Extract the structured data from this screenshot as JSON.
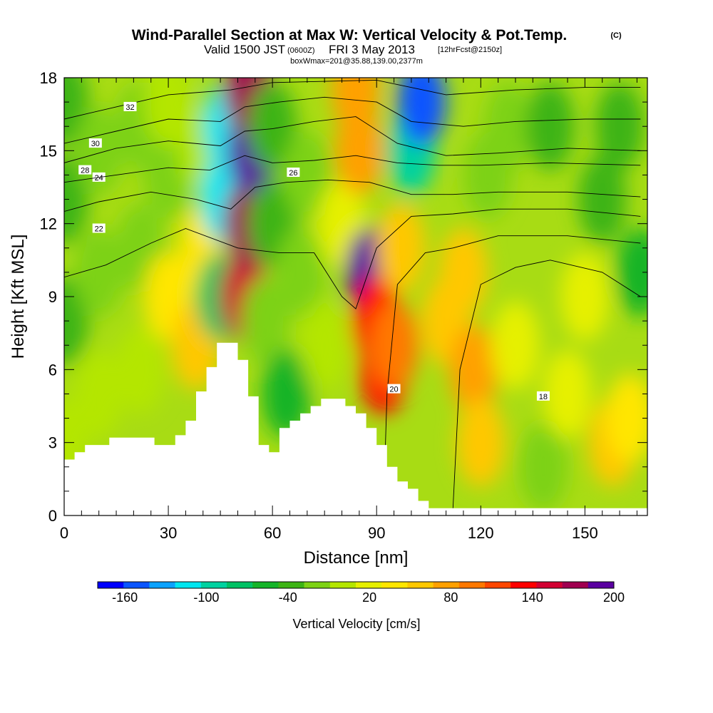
{
  "header": {
    "title": "Wind-Parallel Section at Max W: Vertical Velocity & Pot.Temp.",
    "copyright": "(C)",
    "valid_prefix": "Valid 1500 JST",
    "valid_utc": "(0600Z)",
    "valid_date": "FRI 3 May 2013",
    "forecast_note": "[12hrFcst@2150z]",
    "box_info": "boxWmax=201@35.88,139.00,2377m"
  },
  "chart_data": {
    "type": "heatmap",
    "xlabel": "Distance [nm]",
    "ylabel": "Height [Kft MSL]",
    "xlim": [
      0,
      168
    ],
    "ylim": [
      0,
      18
    ],
    "x_ticks": [
      "0",
      "30",
      "60",
      "90",
      "120",
      "150"
    ],
    "y_ticks": [
      "0",
      "3",
      "6",
      "9",
      "12",
      "15",
      "18"
    ],
    "colorbar": {
      "title": "Vertical Velocity [cm/s]",
      "tick_labels": [
        "-160",
        "-100",
        "-40",
        "20",
        "80",
        "140",
        "200"
      ],
      "levels": [
        -180,
        -160,
        -140,
        -120,
        -100,
        -80,
        -60,
        -40,
        -20,
        0,
        20,
        40,
        60,
        80,
        100,
        120,
        140,
        160,
        180,
        200
      ],
      "colors": [
        "#0000ff",
        "#0a55ff",
        "#0aa2ff",
        "#00e6f0",
        "#00d2a0",
        "#00c264",
        "#14b428",
        "#3cb414",
        "#7dd214",
        "#b4e600",
        "#e6f000",
        "#ffe600",
        "#ffc800",
        "#ffa000",
        "#ff7800",
        "#ff4600",
        "#ff0000",
        "#d20032",
        "#a00050",
        "#5a00a0"
      ]
    },
    "terrain_kft": [
      [
        0,
        2.3
      ],
      [
        3,
        2.3
      ],
      [
        3,
        2.6
      ],
      [
        6,
        2.6
      ],
      [
        6,
        2.9
      ],
      [
        13,
        2.9
      ],
      [
        13,
        3.2
      ],
      [
        26,
        3.2
      ],
      [
        26,
        2.9
      ],
      [
        32,
        2.9
      ],
      [
        32,
        3.3
      ],
      [
        35,
        3.3
      ],
      [
        35,
        3.9
      ],
      [
        38,
        3.9
      ],
      [
        38,
        5.1
      ],
      [
        41,
        5.1
      ],
      [
        41,
        6.1
      ],
      [
        44,
        6.1
      ],
      [
        44,
        7.1
      ],
      [
        50,
        7.1
      ],
      [
        50,
        6.4
      ],
      [
        53,
        6.4
      ],
      [
        53,
        4.9
      ],
      [
        56,
        4.9
      ],
      [
        56,
        2.9
      ],
      [
        59,
        2.9
      ],
      [
        59,
        2.6
      ],
      [
        62,
        2.6
      ],
      [
        62,
        3.6
      ],
      [
        65,
        3.6
      ],
      [
        65,
        3.9
      ],
      [
        68,
        3.9
      ],
      [
        68,
        4.2
      ],
      [
        71,
        4.2
      ],
      [
        71,
        4.5
      ],
      [
        74,
        4.5
      ],
      [
        74,
        4.8
      ],
      [
        81,
        4.8
      ],
      [
        81,
        4.5
      ],
      [
        84,
        4.5
      ],
      [
        84,
        4.2
      ],
      [
        87,
        4.2
      ],
      [
        87,
        3.6
      ],
      [
        90,
        3.6
      ],
      [
        90,
        2.9
      ],
      [
        93,
        2.9
      ],
      [
        93,
        2.0
      ],
      [
        96,
        2.0
      ],
      [
        96,
        1.4
      ],
      [
        99,
        1.4
      ],
      [
        99,
        1.1
      ],
      [
        102,
        1.1
      ],
      [
        102,
        0.6
      ],
      [
        105,
        0.6
      ],
      [
        105,
        0.3
      ],
      [
        168,
        0.3
      ]
    ],
    "w_field_cm_s": [
      [
        0,
        3,
        10
      ],
      [
        0,
        8,
        -30
      ],
      [
        0,
        13,
        -25
      ],
      [
        0,
        17,
        -35
      ],
      [
        10,
        5,
        5
      ],
      [
        10,
        10,
        -20
      ],
      [
        10,
        15,
        -10
      ],
      [
        22,
        6,
        15
      ],
      [
        22,
        11,
        -10
      ],
      [
        22,
        16,
        -20
      ],
      [
        30,
        9,
        40
      ],
      [
        30,
        14,
        -5
      ],
      [
        30,
        17,
        10
      ],
      [
        38,
        7,
        60
      ],
      [
        40,
        11,
        50
      ],
      [
        40,
        15,
        0
      ],
      [
        45,
        9,
        -80
      ],
      [
        46,
        13,
        -110
      ],
      [
        47,
        16,
        -120
      ],
      [
        52,
        9,
        170
      ],
      [
        53,
        12,
        190
      ],
      [
        54,
        15,
        200
      ],
      [
        53,
        17.5,
        180
      ],
      [
        58,
        8,
        -20
      ],
      [
        60,
        12,
        -40
      ],
      [
        60,
        16,
        -30
      ],
      [
        64,
        5,
        -60
      ],
      [
        68,
        10,
        -10
      ],
      [
        70,
        14,
        -20
      ],
      [
        75,
        7,
        5
      ],
      [
        80,
        12,
        20
      ],
      [
        85,
        15,
        80
      ],
      [
        84,
        17.5,
        90
      ],
      [
        88,
        10,
        200
      ],
      [
        90,
        8,
        150
      ],
      [
        92,
        6,
        140
      ],
      [
        95,
        7,
        100
      ],
      [
        97,
        11,
        60
      ],
      [
        100,
        15,
        -100
      ],
      [
        103,
        17,
        -150
      ],
      [
        110,
        8,
        60
      ],
      [
        115,
        10,
        70
      ],
      [
        118,
        6,
        90
      ],
      [
        120,
        3,
        70
      ],
      [
        122,
        14,
        -10
      ],
      [
        128,
        16,
        -20
      ],
      [
        140,
        16,
        -40
      ],
      [
        130,
        7,
        30
      ],
      [
        138,
        2,
        -20
      ],
      [
        145,
        5,
        30
      ],
      [
        150,
        9,
        20
      ],
      [
        155,
        13,
        -30
      ],
      [
        160,
        16,
        -40
      ],
      [
        158,
        3,
        60
      ],
      [
        163,
        4,
        40
      ],
      [
        166,
        10,
        -50
      ]
    ],
    "theta_contours": [
      {
        "label": "18",
        "label_at": [
          138,
          4.9
        ],
        "points": [
          [
            112,
            0.3
          ],
          [
            114,
            6
          ],
          [
            120,
            9.5
          ],
          [
            130,
            10.2
          ],
          [
            140,
            10.5
          ],
          [
            155,
            10
          ],
          [
            166,
            9
          ]
        ]
      },
      {
        "label": "20",
        "label_at": [
          95,
          5.2
        ],
        "points": [
          [
            92,
            0.5
          ],
          [
            93,
            5
          ],
          [
            96,
            9.5
          ],
          [
            104,
            10.8
          ],
          [
            112,
            11
          ],
          [
            125,
            11.5
          ],
          [
            145,
            11.5
          ],
          [
            166,
            11.2
          ]
        ]
      },
      {
        "label": "22",
        "label_at": [
          10,
          11.8
        ],
        "points": [
          [
            0,
            9.8
          ],
          [
            12,
            10.3
          ],
          [
            25,
            11.2
          ],
          [
            35,
            11.8
          ],
          [
            50,
            11
          ],
          [
            62,
            10.8
          ],
          [
            72,
            10.8
          ],
          [
            80,
            9
          ],
          [
            84,
            8.5
          ],
          [
            90,
            11
          ],
          [
            100,
            12.3
          ],
          [
            112,
            12.4
          ],
          [
            125,
            12.6
          ],
          [
            145,
            12.6
          ],
          [
            166,
            12.3
          ]
        ]
      },
      {
        "label": "24",
        "label_at": [
          10,
          13.9
        ],
        "points": [
          [
            0,
            12.5
          ],
          [
            10,
            12.9
          ],
          [
            25,
            13.3
          ],
          [
            38,
            13
          ],
          [
            48,
            12.6
          ],
          [
            55,
            13.5
          ],
          [
            64,
            13.7
          ],
          [
            76,
            13.8
          ],
          [
            88,
            13.7
          ],
          [
            100,
            13.2
          ],
          [
            112,
            13.2
          ],
          [
            125,
            13.3
          ],
          [
            145,
            13.3
          ],
          [
            166,
            13.1
          ]
        ]
      },
      {
        "label": "26",
        "label_at": [
          66,
          14.1
        ],
        "points": [
          [
            0,
            13.7
          ],
          [
            15,
            14
          ],
          [
            30,
            14.3
          ],
          [
            42,
            14.2
          ],
          [
            52,
            14.8
          ],
          [
            60,
            14.5
          ],
          [
            72,
            14.6
          ],
          [
            84,
            14.8
          ],
          [
            96,
            14.5
          ],
          [
            108,
            14.4
          ],
          [
            120,
            14.4
          ],
          [
            140,
            14.5
          ],
          [
            166,
            14.4
          ]
        ]
      },
      {
        "label": "28",
        "label_at": [
          6,
          14.2
        ],
        "points": [
          [
            0,
            14.5
          ],
          [
            15,
            15.1
          ],
          [
            30,
            15.4
          ],
          [
            45,
            15.2
          ],
          [
            52,
            15.8
          ],
          [
            60,
            15.9
          ],
          [
            72,
            16.2
          ],
          [
            84,
            16.4
          ],
          [
            96,
            15.3
          ],
          [
            110,
            14.8
          ],
          [
            125,
            14.9
          ],
          [
            145,
            15.1
          ],
          [
            166,
            15
          ]
        ]
      },
      {
        "label": "30",
        "label_at": [
          9,
          15.3
        ],
        "points": [
          [
            0,
            15.3
          ],
          [
            15,
            15.8
          ],
          [
            30,
            16.3
          ],
          [
            45,
            16.2
          ],
          [
            52,
            16.8
          ],
          [
            62,
            17
          ],
          [
            75,
            17.2
          ],
          [
            90,
            17
          ],
          [
            100,
            16.2
          ],
          [
            115,
            16
          ],
          [
            130,
            16.2
          ],
          [
            150,
            16.3
          ],
          [
            166,
            16.3
          ]
        ]
      },
      {
        "label": "32",
        "label_at": [
          19,
          16.8
        ],
        "points": [
          [
            0,
            16.3
          ],
          [
            15,
            16.8
          ],
          [
            30,
            17.3
          ],
          [
            48,
            17.5
          ],
          [
            60,
            17.8
          ],
          [
            90,
            17.9
          ],
          [
            110,
            17.3
          ],
          [
            130,
            17.5
          ],
          [
            150,
            17.6
          ],
          [
            166,
            17.6
          ]
        ]
      }
    ]
  }
}
